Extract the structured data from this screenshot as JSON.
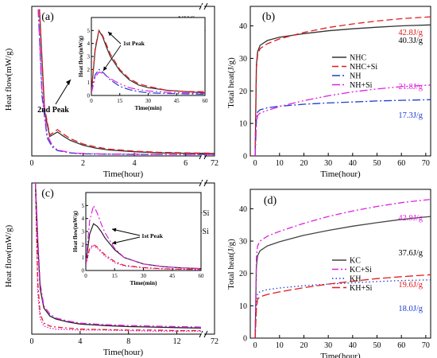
{
  "chart_data": [
    {
      "type": "line",
      "panel_label": "(a)",
      "xlabel": "Time(hour)",
      "ylabel": "Heat flow(mW/g)",
      "xticks": [
        "0",
        "2",
        "4",
        "6",
        "72"
      ],
      "xlim": [
        0,
        7.1
      ],
      "ylim": [
        0,
        5.0
      ],
      "annotations": [
        {
          "text": "2nd Peak"
        }
      ],
      "series": [
        {
          "name": "NHC",
          "color": "#333333",
          "dash": "solid",
          "x": [
            0.3,
            0.5,
            0.7,
            0.9,
            1.0,
            1.2,
            1.5,
            2.0,
            2.5,
            3.0,
            4.0,
            5.0,
            6.0,
            7.1
          ],
          "y": [
            4.9,
            1.5,
            0.65,
            0.75,
            0.8,
            0.68,
            0.52,
            0.36,
            0.26,
            0.2,
            0.14,
            0.1,
            0.09,
            0.08
          ]
        },
        {
          "name": "NHC+Si",
          "color": "#e31a1c",
          "dash": "8,4",
          "x": [
            0.3,
            0.5,
            0.7,
            0.9,
            1.0,
            1.2,
            1.5,
            2.0,
            2.5,
            3.0,
            4.0,
            5.0,
            6.0,
            7.1
          ],
          "y": [
            4.9,
            1.6,
            0.7,
            0.82,
            0.88,
            0.75,
            0.58,
            0.4,
            0.3,
            0.23,
            0.16,
            0.12,
            0.1,
            0.09
          ]
        },
        {
          "name": "NH",
          "color": "#1f3fcf",
          "dash": "10,3,2,3",
          "x": [
            0.25,
            0.4,
            0.6,
            0.8,
            1.0,
            1.5,
            2.0,
            3.0,
            4.0,
            5.0,
            6.0,
            7.1
          ],
          "y": [
            4.9,
            2.0,
            0.6,
            0.3,
            0.18,
            0.1,
            0.07,
            0.06,
            0.05,
            0.05,
            0.05,
            0.05
          ]
        },
        {
          "name": "NH+Si",
          "color": "#e020e0",
          "dash": "10,3,2,3,2,3",
          "x": [
            0.25,
            0.4,
            0.6,
            0.8,
            1.0,
            1.5,
            2.0,
            3.0,
            4.0,
            5.0,
            6.0,
            7.1
          ],
          "y": [
            4.9,
            2.2,
            0.7,
            0.35,
            0.2,
            0.11,
            0.08,
            0.06,
            0.06,
            0.05,
            0.05,
            0.05
          ]
        }
      ],
      "inset": {
        "xlabel": "Time(min)",
        "ylabel": "Heat flow(mW/g)",
        "xticks": [
          "0",
          "15",
          "30",
          "45",
          "60"
        ],
        "yticks": [
          "0",
          "1",
          "2",
          "3",
          "4",
          "5"
        ],
        "xlim": [
          0,
          60
        ],
        "ylim": [
          0,
          6
        ],
        "annotations": [
          {
            "text": "1st Peak"
          }
        ],
        "series": [
          {
            "name": "NHC",
            "x": [
              0,
              2,
              4,
              6,
              8,
              10,
              15,
              20,
              25,
              30,
              40,
              50,
              60
            ],
            "y": [
              0.2,
              3.5,
              5.0,
              4.5,
              3.7,
              3.0,
              1.9,
              1.2,
              0.8,
              0.6,
              0.4,
              0.3,
              0.2
            ]
          },
          {
            "name": "NHC+Si",
            "x": [
              0,
              2,
              4,
              6,
              8,
              10,
              15,
              20,
              25,
              30,
              40,
              50,
              60
            ],
            "y": [
              0.2,
              3.7,
              5.0,
              4.6,
              3.9,
              3.2,
              2.0,
              1.3,
              0.9,
              0.7,
              0.4,
              0.3,
              0.3
            ]
          },
          {
            "name": "NH",
            "x": [
              0,
              2,
              4,
              6,
              8,
              10,
              15,
              20,
              25,
              30,
              40,
              50,
              60
            ],
            "y": [
              0.2,
              1.6,
              2.0,
              1.8,
              1.5,
              1.2,
              0.7,
              0.45,
              0.3,
              0.2,
              0.15,
              0.12,
              0.1
            ]
          },
          {
            "name": "NH+Si",
            "x": [
              0,
              2,
              4,
              6,
              8,
              10,
              15,
              20,
              25,
              30,
              40,
              50,
              60
            ],
            "y": [
              0.2,
              1.4,
              1.8,
              1.7,
              1.5,
              1.3,
              0.9,
              0.6,
              0.45,
              0.35,
              0.25,
              0.2,
              0.15
            ]
          }
        ]
      }
    },
    {
      "type": "line",
      "panel_label": "(b)",
      "xlabel": "Time(hour)",
      "ylabel": "Total heat(J/g)",
      "xticks": [
        "0",
        "10",
        "20",
        "30",
        "40",
        "50",
        "60",
        "70"
      ],
      "yticks": [
        "0",
        "10",
        "20",
        "30",
        "40"
      ],
      "xlim": [
        -2,
        72
      ],
      "ylim": [
        0,
        46
      ],
      "series": [
        {
          "name": "NHC",
          "color": "#333333",
          "dash": "solid",
          "end_label": "40.3J/g",
          "x": [
            0,
            0.5,
            1,
            2,
            5,
            10,
            20,
            30,
            40,
            50,
            60,
            72
          ],
          "y": [
            0,
            28,
            32,
            34,
            35.5,
            36.5,
            37.6,
            38.5,
            39.1,
            39.6,
            40.0,
            40.3
          ]
        },
        {
          "name": "NHC+Si",
          "color": "#e31a1c",
          "dash": "8,4",
          "end_label": "42.8J/g",
          "x": [
            0,
            0.5,
            1,
            2,
            5,
            10,
            20,
            30,
            40,
            50,
            60,
            72
          ],
          "y": [
            0,
            27,
            31,
            33,
            34.5,
            36,
            38,
            39.5,
            40.6,
            41.5,
            42.2,
            42.8
          ]
        },
        {
          "name": "NH",
          "color": "#1f3fcf",
          "dash": "10,3,2,3",
          "end_label": "17.3J/g",
          "x": [
            0,
            0.5,
            1,
            2,
            5,
            10,
            20,
            30,
            40,
            50,
            60,
            72
          ],
          "y": [
            0,
            11,
            13.5,
            14.2,
            14.8,
            15.3,
            15.9,
            16.3,
            16.6,
            16.9,
            17.1,
            17.3
          ]
        },
        {
          "name": "NH+Si",
          "color": "#e020e0",
          "dash": "10,3,2,3,2,3",
          "end_label": "21.8J/g",
          "x": [
            0,
            0.5,
            1,
            2,
            5,
            10,
            20,
            30,
            40,
            50,
            60,
            72
          ],
          "y": [
            0,
            10,
            12.5,
            13.2,
            14.0,
            15.2,
            17.0,
            18.5,
            19.7,
            20.6,
            21.3,
            21.8
          ]
        }
      ]
    },
    {
      "type": "line",
      "panel_label": "(c)",
      "xlabel": "Time(hour)",
      "ylabel": "Heat flow(mW/g)",
      "xticks": [
        "0",
        "4",
        "8",
        "12",
        "72"
      ],
      "xlim": [
        0,
        14
      ],
      "ylim": [
        0,
        1.5
      ],
      "series": [
        {
          "name": "KH",
          "color": "#e020e0",
          "dash": "1.5,2",
          "x": [
            0.3,
            0.5,
            0.7,
            1.0,
            1.5,
            2,
            3,
            4,
            6,
            8,
            10,
            12,
            14
          ],
          "y": [
            1.5,
            0.4,
            0.15,
            0.08,
            0.06,
            0.05,
            0.045,
            0.04,
            0.04,
            0.035,
            0.03,
            0.03,
            0.03
          ]
        },
        {
          "name": "KH+Si",
          "color": "#e31a1c",
          "dash": "6,3,2,3",
          "x": [
            0.3,
            0.5,
            0.7,
            1.0,
            1.5,
            2,
            3,
            4,
            6,
            8,
            10,
            12,
            14
          ],
          "y": [
            1.5,
            0.5,
            0.2,
            0.11,
            0.08,
            0.07,
            0.06,
            0.05,
            0.045,
            0.04,
            0.04,
            0.035,
            0.035
          ]
        },
        {
          "name": "KC",
          "color": "#222222",
          "dash": "solid",
          "x": [
            0.3,
            0.5,
            0.7,
            1.0,
            1.5,
            2,
            3,
            4,
            6,
            8,
            10,
            12,
            14
          ],
          "y": [
            1.5,
            0.9,
            0.45,
            0.26,
            0.18,
            0.15,
            0.12,
            0.1,
            0.085,
            0.075,
            0.07,
            0.065,
            0.06
          ]
        },
        {
          "name": "KC+Si",
          "color": "#e020e0",
          "dash": "8,3,2,3",
          "x": [
            0.3,
            0.5,
            0.7,
            1.0,
            1.5,
            2,
            3,
            4,
            6,
            8,
            10,
            12,
            14
          ],
          "y": [
            1.5,
            0.95,
            0.5,
            0.28,
            0.2,
            0.16,
            0.13,
            0.11,
            0.095,
            0.085,
            0.08,
            0.075,
            0.07
          ]
        }
      ],
      "inset": {
        "xlabel": "Time(min)",
        "ylabel": "Heat flow(mW/g)",
        "xticks": [
          "0",
          "15",
          "30",
          "45",
          "60"
        ],
        "yticks": [
          "0",
          "1",
          "2",
          "3",
          "4",
          "5"
        ],
        "xlim": [
          0,
          60
        ],
        "ylim": [
          0,
          6
        ],
        "annotations": [
          {
            "text": "1st Peak"
          }
        ],
        "series": [
          {
            "name": "KH",
            "x": [
              0,
              2,
              4,
              6,
              8,
              10,
              15,
              20,
              30,
              40,
              50,
              60
            ],
            "y": [
              0.5,
              1.6,
              1.9,
              1.7,
              1.4,
              1.1,
              0.6,
              0.35,
              0.2,
              0.12,
              0.1,
              0.08
            ]
          },
          {
            "name": "KH+Si",
            "x": [
              0,
              2,
              4,
              6,
              8,
              10,
              15,
              20,
              30,
              40,
              50,
              60
            ],
            "y": [
              0.5,
              1.7,
              2.0,
              1.8,
              1.5,
              1.2,
              0.7,
              0.4,
              0.22,
              0.14,
              0.1,
              0.08
            ]
          },
          {
            "name": "KC",
            "x": [
              0,
              2,
              4,
              6,
              8,
              10,
              15,
              20,
              30,
              40,
              50,
              60
            ],
            "y": [
              0.5,
              2.8,
              3.6,
              3.4,
              3.0,
              2.5,
              1.6,
              1.0,
              0.5,
              0.3,
              0.2,
              0.15
            ]
          },
          {
            "name": "KC+Si",
            "x": [
              0,
              2,
              4,
              6,
              8,
              10,
              15,
              20,
              30,
              40,
              50,
              60
            ],
            "y": [
              0.5,
              3.8,
              5.0,
              4.4,
              3.6,
              2.9,
              1.7,
              1.0,
              0.5,
              0.3,
              0.2,
              0.15
            ]
          }
        ]
      }
    },
    {
      "type": "line",
      "panel_label": "(d)",
      "xlabel": "Time(hour)",
      "ylabel": "Total heat(J/g)",
      "xticks": [
        "0",
        "10",
        "20",
        "30",
        "40",
        "50",
        "60",
        "70"
      ],
      "yticks": [
        "0",
        "10",
        "20",
        "30",
        "40"
      ],
      "xlim": [
        -2,
        72
      ],
      "ylim": [
        0,
        46
      ],
      "series": [
        {
          "name": "KC",
          "color": "#444444",
          "dash": "solid",
          "end_label": "37.6J/g",
          "x": [
            0,
            0.5,
            1,
            2,
            5,
            10,
            20,
            30,
            40,
            50,
            60,
            72
          ],
          "y": [
            0,
            22,
            25.5,
            27,
            28.5,
            29.8,
            31.8,
            33.3,
            34.6,
            35.7,
            36.7,
            37.6
          ]
        },
        {
          "name": "KC+Si",
          "color": "#e020e0",
          "dash": "8,3,2,3",
          "end_label": "42.9J/g",
          "x": [
            0,
            0.5,
            1,
            2,
            5,
            10,
            20,
            30,
            40,
            50,
            60,
            72
          ],
          "y": [
            0,
            25,
            28.5,
            30,
            31.5,
            33.0,
            35.5,
            37.6,
            39.3,
            40.7,
            41.9,
            42.9
          ]
        },
        {
          "name": "KH",
          "color": "#1f3fcf",
          "dash": "1.5,3",
          "end_label": "18.0J/g",
          "x": [
            0,
            0.5,
            1,
            2,
            5,
            10,
            20,
            30,
            40,
            50,
            60,
            72
          ],
          "y": [
            0,
            11,
            13.8,
            14.4,
            15.0,
            15.5,
            16.2,
            16.7,
            17.1,
            17.5,
            17.8,
            18.0
          ]
        },
        {
          "name": "KH+Si",
          "color": "#e31a1c",
          "dash": "10,4",
          "end_label": "19.6J/g",
          "x": [
            0,
            0.5,
            1,
            2,
            5,
            10,
            20,
            30,
            40,
            50,
            60,
            72
          ],
          "y": [
            0,
            9,
            12,
            12.8,
            13.5,
            14.3,
            15.6,
            16.7,
            17.6,
            18.4,
            19.0,
            19.6
          ]
        }
      ]
    }
  ]
}
